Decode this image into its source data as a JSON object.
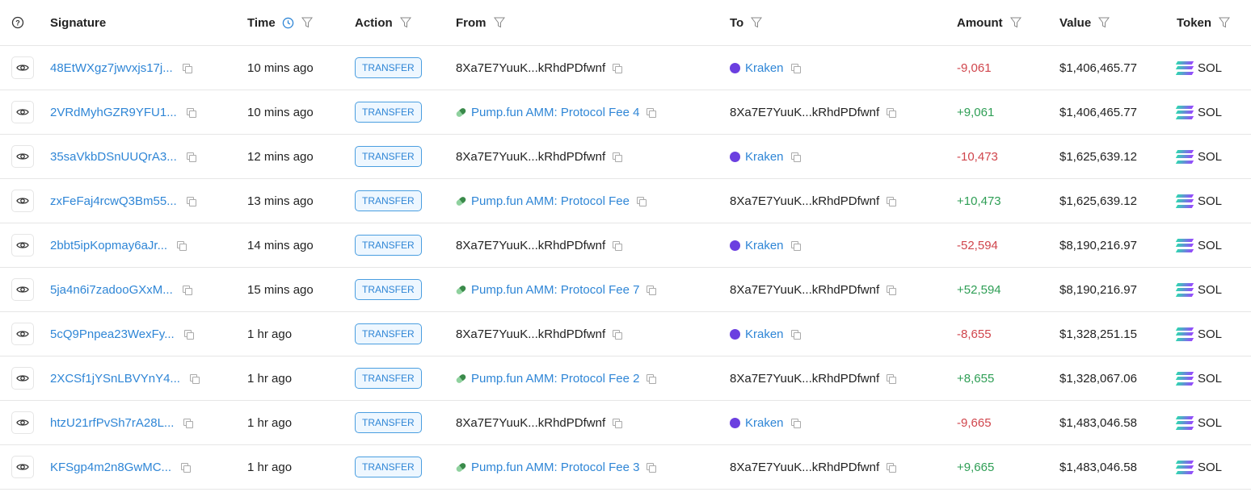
{
  "header": {
    "signature": "Signature",
    "time": "Time",
    "action": "Action",
    "from": "From",
    "to": "To",
    "amount": "Amount",
    "value": "Value",
    "token": "Token"
  },
  "colors": {
    "link": "#2f86d6",
    "negative": "#d0454c",
    "positive": "#2e9e55",
    "kraken": "#6b3fe0"
  },
  "rows": [
    {
      "sig": "48EtWXgz7jwvxjs17j...",
      "time": "10 mins ago",
      "action": "TRANSFER",
      "from": "8Xa7E7YuuK...kRhdPDfwnf",
      "from_label": false,
      "to": "Kraken",
      "to_label": true,
      "amount": "-9,061",
      "value": "$1,406,465.77",
      "token": "SOL"
    },
    {
      "sig": "2VRdMyhGZR9YFU1...",
      "time": "10 mins ago",
      "action": "TRANSFER",
      "from": "Pump.fun AMM: Protocol Fee 4",
      "from_label": true,
      "to": "8Xa7E7YuuK...kRhdPDfwnf",
      "to_label": false,
      "amount": "+9,061",
      "value": "$1,406,465.77",
      "token": "SOL"
    },
    {
      "sig": "35saVkbDSnUUQrA3...",
      "time": "12 mins ago",
      "action": "TRANSFER",
      "from": "8Xa7E7YuuK...kRhdPDfwnf",
      "from_label": false,
      "to": "Kraken",
      "to_label": true,
      "amount": "-10,473",
      "value": "$1,625,639.12",
      "token": "SOL"
    },
    {
      "sig": "zxFeFaj4rcwQ3Bm55...",
      "time": "13 mins ago",
      "action": "TRANSFER",
      "from": "Pump.fun AMM: Protocol Fee",
      "from_label": true,
      "to": "8Xa7E7YuuK...kRhdPDfwnf",
      "to_label": false,
      "amount": "+10,473",
      "value": "$1,625,639.12",
      "token": "SOL"
    },
    {
      "sig": "2bbt5ipKopmay6aJr...",
      "time": "14 mins ago",
      "action": "TRANSFER",
      "from": "8Xa7E7YuuK...kRhdPDfwnf",
      "from_label": false,
      "to": "Kraken",
      "to_label": true,
      "amount": "-52,594",
      "value": "$8,190,216.97",
      "token": "SOL"
    },
    {
      "sig": "5ja4n6i7zadooGXxM...",
      "time": "15 mins ago",
      "action": "TRANSFER",
      "from": "Pump.fun AMM: Protocol Fee 7",
      "from_label": true,
      "to": "8Xa7E7YuuK...kRhdPDfwnf",
      "to_label": false,
      "amount": "+52,594",
      "value": "$8,190,216.97",
      "token": "SOL"
    },
    {
      "sig": "5cQ9Pnpea23WexFy...",
      "time": "1 hr ago",
      "action": "TRANSFER",
      "from": "8Xa7E7YuuK...kRhdPDfwnf",
      "from_label": false,
      "to": "Kraken",
      "to_label": true,
      "amount": "-8,655",
      "value": "$1,328,251.15",
      "token": "SOL"
    },
    {
      "sig": "2XCSf1jYSnLBVYnY4...",
      "time": "1 hr ago",
      "action": "TRANSFER",
      "from": "Pump.fun AMM: Protocol Fee 2",
      "from_label": true,
      "to": "8Xa7E7YuuK...kRhdPDfwnf",
      "to_label": false,
      "amount": "+8,655",
      "value": "$1,328,067.06",
      "token": "SOL"
    },
    {
      "sig": "htzU21rfPvSh7rA28L...",
      "time": "1 hr ago",
      "action": "TRANSFER",
      "from": "8Xa7E7YuuK...kRhdPDfwnf",
      "from_label": false,
      "to": "Kraken",
      "to_label": true,
      "amount": "-9,665",
      "value": "$1,483,046.58",
      "token": "SOL"
    },
    {
      "sig": "KFSgp4m2n8GwMC...",
      "time": "1 hr ago",
      "action": "TRANSFER",
      "from": "Pump.fun AMM: Protocol Fee 3",
      "from_label": true,
      "to": "8Xa7E7YuuK...kRhdPDfwnf",
      "to_label": false,
      "amount": "+9,665",
      "value": "$1,483,046.58",
      "token": "SOL"
    }
  ]
}
